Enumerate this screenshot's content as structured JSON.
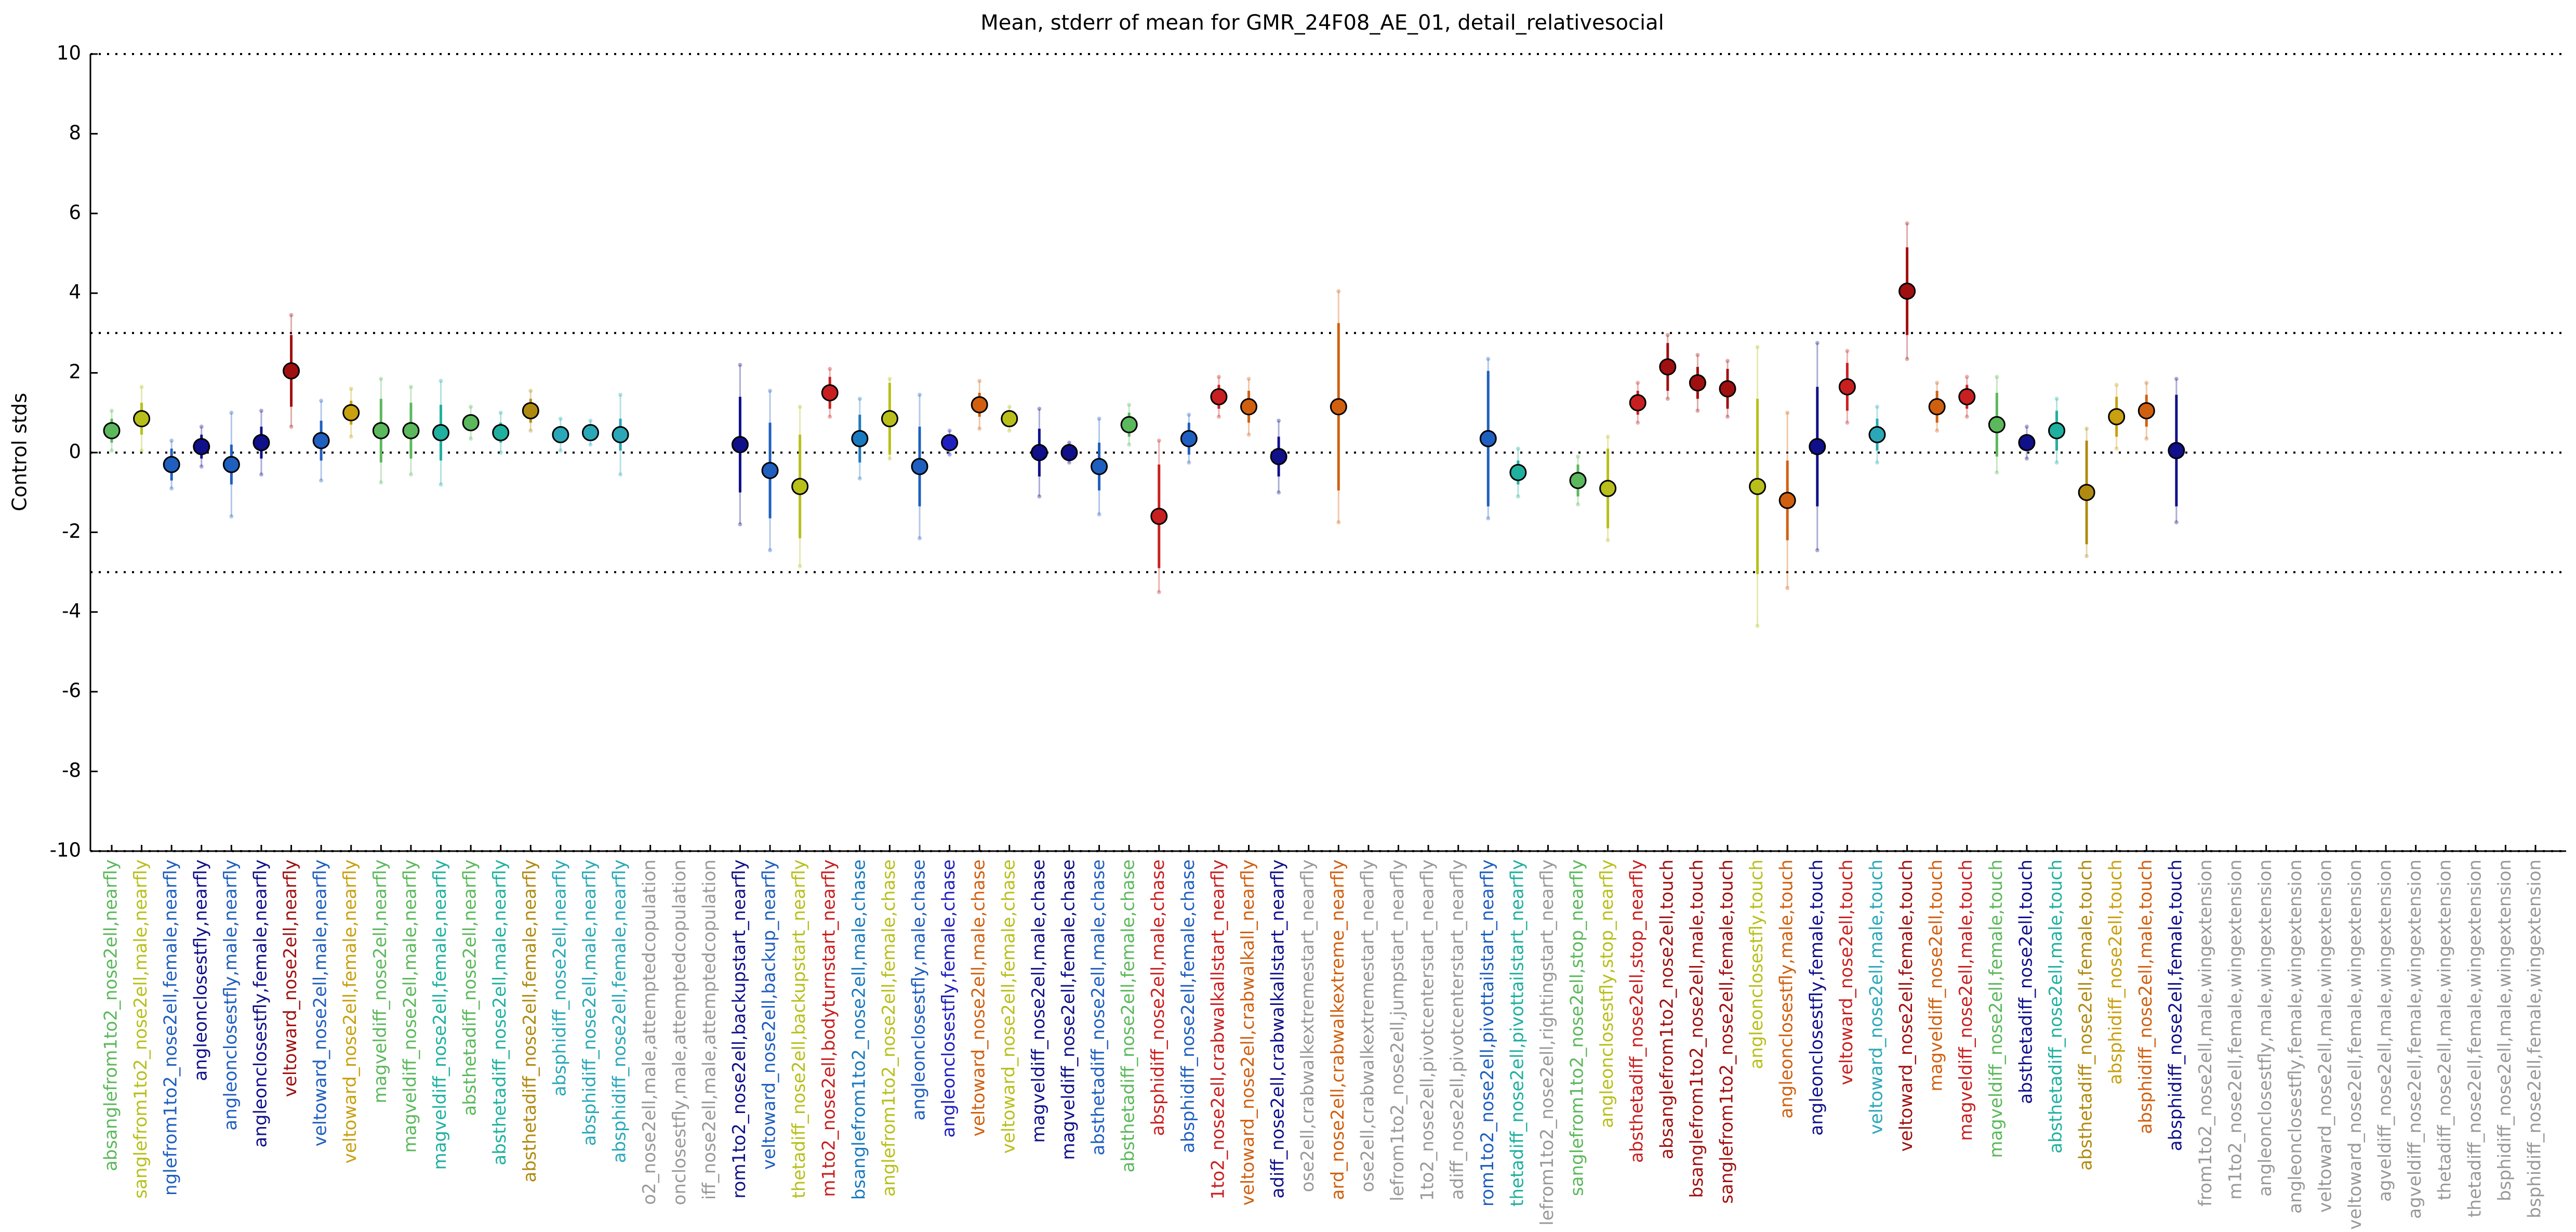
{
  "chart_data": {
    "type": "errorbar",
    "title": "Mean, stderr of mean for GMR_24F08_AE_01, detail_relativesocial",
    "ylabel": "Control stds",
    "ylim": [
      -10,
      10
    ],
    "yticks": [
      -10,
      -8,
      -6,
      -4,
      -2,
      0,
      2,
      4,
      6,
      8,
      10
    ],
    "reference_lines": [
      10,
      3,
      0,
      -3,
      -10
    ],
    "categories": [
      "absanglefrom1to2_nose2ell,nearfly",
      "sanglefrom1to2_nose2ell,male,nearfly",
      "nglefrom1to2_nose2ell,female,nearfly",
      "angleonclosestfly,nearfly",
      "angleonclosestfly,male,nearfly",
      "angleonclosestfly,female,nearfly",
      "veltoward_nose2ell,nearfly",
      "veltoward_nose2ell,male,nearfly",
      "veltoward_nose2ell,female,nearfly",
      "magveldiff_nose2ell,nearfly",
      "magveldiff_nose2ell,male,nearfly",
      "magveldiff_nose2ell,female,nearfly",
      "absthetadiff_nose2ell,nearfly",
      "absthetadiff_nose2ell,male,nearfly",
      "absthetadiff_nose2ell,female,nearfly",
      "absphidiff_nose2ell,nearfly",
      "absphidiff_nose2ell,male,nearfly",
      "absphidiff_nose2ell,female,nearfly",
      "o2_nose2ell,male,attemptedcopulation",
      "onclosestfly,male,attemptedcopulation",
      "iff_nose2ell,male,attemptedcopulation",
      "rom1to2_nose2ell,backupstart_nearfly",
      "veltoward_nose2ell,backup_nearfly",
      "thetadiff_nose2ell,backupstart_nearfly",
      "m1to2_nose2ell,bodyturnstart_nearfly",
      "bsanglefrom1to2_nose2ell,male,chase",
      "anglefrom1to2_nose2ell,female,chase",
      "angleonclosestfly,male,chase",
      "angleonclosestfly,female,chase",
      "veltoward_nose2ell,male,chase",
      "veltoward_nose2ell,female,chase",
      "magveldiff_nose2ell,male,chase",
      "magveldiff_nose2ell,female,chase",
      "absthetadiff_nose2ell,male,chase",
      "absthetadiff_nose2ell,female,chase",
      "absphidiff_nose2ell,male,chase",
      "absphidiff_nose2ell,female,chase",
      "1to2_nose2ell,crabwalkallstart_nearfly",
      "veltoward_nose2ell,crabwalkall_nearfly",
      "adiff_nose2ell,crabwalkallstart_nearfly",
      "ose2ell,crabwalkextremestart_nearfly",
      "ard_nose2ell,crabwalkextreme_nearfly",
      "ose2ell,crabwalkextremestart_nearfly",
      "lefrom1to2_nose2ell,jumpstart_nearfly",
      "1to2_nose2ell,pivotcenterstart_nearfly",
      "adiff_nose2ell,pivotcenterstart_nearfly",
      "rom1to2_nose2ell,pivottailstart_nearfly",
      "thetadiff_nose2ell,pivottailstart_nearfly",
      "lefrom1to2_nose2ell,rightingstart_nearfly",
      "sanglefrom1to2_nose2ell,stop_nearfly",
      "angleonclosestfly,stop_nearfly",
      "absthetadiff_nose2ell,stop_nearfly",
      "absanglefrom1to2_nose2ell,touch",
      "bsanglefrom1to2_nose2ell,male,touch",
      "sanglefrom1to2_nose2ell,female,touch",
      "angleonclosestfly,touch",
      "angleonclosestfly,male,touch",
      "angleonclosestfly,female,touch",
      "veltoward_nose2ell,touch",
      "veltoward_nose2ell,male,touch",
      "veltoward_nose2ell,female,touch",
      "magveldiff_nose2ell,touch",
      "magveldiff_nose2ell,male,touch",
      "magveldiff_nose2ell,female,touch",
      "absthetadiff_nose2ell,touch",
      "absthetadiff_nose2ell,male,touch",
      "absthetadiff_nose2ell,female,touch",
      "absphidiff_nose2ell,touch",
      "absphidiff_nose2ell,male,touch",
      "absphidiff_nose2ell,female,touch",
      "from1to2_nose2ell,male,wingextension",
      "m1to2_nose2ell,female,wingextension",
      "angleonclosestfly,male,wingextension",
      "angleonclosestfly,female,wingextension",
      "veltoward_nose2ell,male,wingextension",
      "veltoward_nose2ell,female,wingextension",
      "agveldiff_nose2ell,male,wingextension",
      "agveldiff_nose2ell,female,wingextension",
      "thetadiff_nose2ell,male,wingextension",
      "thetadiff_nose2ell,female,wingextension",
      "bsphidiff_nose2ell,male,wingextension",
      "bsphidiff_nose2ell,female,wingextension"
    ],
    "values": [
      0.55,
      0.85,
      -0.3,
      0.15,
      -0.3,
      0.25,
      2.05,
      0.3,
      1.0,
      0.55,
      0.55,
      0.5,
      0.75,
      0.5,
      1.05,
      0.45,
      0.5,
      0.45,
      null,
      null,
      null,
      0.2,
      -0.45,
      -0.85,
      1.5,
      0.35,
      0.85,
      -0.35,
      0.25,
      1.2,
      0.85,
      0.0,
      0.0,
      -0.35,
      0.7,
      -1.6,
      0.35,
      1.4,
      1.15,
      -0.1,
      null,
      1.15,
      null,
      null,
      null,
      null,
      0.35,
      -0.5,
      null,
      -0.7,
      -0.9,
      1.25,
      2.15,
      1.75,
      1.6,
      -0.85,
      -1.2,
      0.15,
      1.65,
      0.45,
      4.05,
      1.15,
      1.4,
      0.7,
      0.25,
      0.55,
      -1.0,
      0.9,
      1.05,
      0.05,
      null,
      null,
      null,
      null,
      null,
      null,
      null,
      null,
      null,
      null,
      null,
      null
    ],
    "errors": [
      0.3,
      0.4,
      0.4,
      0.3,
      0.5,
      0.4,
      0.9,
      0.5,
      0.3,
      0.8,
      0.7,
      0.7,
      0.2,
      0.25,
      0.3,
      0.2,
      0.15,
      0.4,
      null,
      null,
      null,
      1.2,
      1.2,
      1.3,
      0.4,
      0.6,
      0.9,
      1.0,
      0.2,
      0.3,
      0.2,
      0.6,
      0.15,
      0.6,
      0.3,
      1.3,
      0.4,
      0.3,
      0.4,
      0.5,
      null,
      2.1,
      null,
      null,
      null,
      null,
      1.7,
      0.3,
      null,
      0.4,
      1.0,
      0.3,
      0.6,
      0.4,
      0.5,
      2.2,
      1.0,
      1.5,
      0.6,
      0.4,
      1.1,
      0.4,
      0.3,
      0.8,
      0.2,
      0.5,
      1.3,
      0.5,
      0.4,
      1.4,
      null,
      null,
      null,
      null,
      null,
      null,
      null,
      null,
      null,
      null,
      null,
      null
    ],
    "spreads": [
      0.5,
      0.8,
      0.6,
      0.5,
      1.3,
      0.8,
      1.4,
      1.0,
      0.6,
      1.3,
      1.1,
      1.3,
      0.4,
      0.5,
      0.5,
      0.4,
      0.3,
      1.0,
      null,
      null,
      null,
      2.0,
      2.0,
      2.0,
      0.6,
      1.0,
      1.0,
      1.8,
      0.3,
      0.6,
      0.3,
      1.1,
      0.25,
      1.2,
      0.5,
      1.9,
      0.6,
      0.5,
      0.7,
      0.9,
      null,
      2.9,
      null,
      null,
      null,
      null,
      2.0,
      0.6,
      null,
      0.6,
      1.3,
      0.5,
      0.8,
      0.7,
      0.7,
      3.5,
      2.2,
      2.6,
      0.9,
      0.7,
      1.7,
      0.6,
      0.5,
      1.2,
      0.4,
      0.8,
      1.6,
      0.8,
      0.7,
      1.8,
      null,
      null,
      null,
      null,
      null,
      null,
      null,
      null,
      null,
      null,
      null,
      null
    ],
    "colors": [
      "#5cb85c",
      "#b8bf1a",
      "#1f5fbf",
      "#10108a",
      "#1f5fbf",
      "#10108a",
      "#a01010",
      "#1f5fbf",
      "#c8a010",
      "#5cb85c",
      "#5cb85c",
      "#20b0a0",
      "#5cb85c",
      "#20b0a0",
      "#b08a10",
      "#2aa8b8",
      "#2aa8b8",
      "#2aa8b8",
      "#999999",
      "#999999",
      "#999999",
      "#10108a",
      "#1f5fbf",
      "#b8bf1a",
      "#c82020",
      "#1a7abf",
      "#b8bf1a",
      "#1f5fbf",
      "#2020c0",
      "#d06010",
      "#b8bf1a",
      "#10108a",
      "#10108a",
      "#1f5fbf",
      "#5cb85c",
      "#c82020",
      "#1f5fbf",
      "#c82020",
      "#d06010",
      "#10108a",
      "#999999",
      "#d06010",
      "#999999",
      "#999999",
      "#999999",
      "#999999",
      "#1f5fbf",
      "#20b0a0",
      "#999999",
      "#5cb85c",
      "#b8bf1a",
      "#c82020",
      "#a01010",
      "#a01010",
      "#a01010",
      "#b8bf1a",
      "#d06010",
      "#10108a",
      "#c82020",
      "#2aa8b8",
      "#a01010",
      "#d06010",
      "#c82020",
      "#5cb85c",
      "#10108a",
      "#20b0a0",
      "#b08a10",
      "#c8a010",
      "#d06010",
      "#10108a",
      "#999999",
      "#999999",
      "#999999",
      "#999999",
      "#999999",
      "#999999",
      "#999999",
      "#999999",
      "#999999",
      "#999999",
      "#999999",
      "#999999"
    ]
  }
}
